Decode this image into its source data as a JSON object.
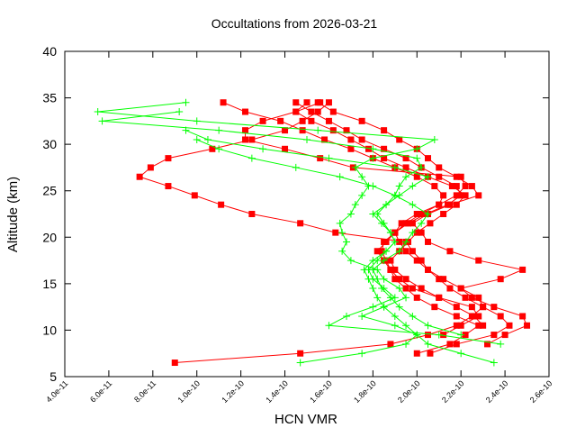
{
  "chart_data": {
    "type": "line",
    "title": "Occultations from 2026-03-21",
    "xlabel": "HCN VMR",
    "ylabel": "Altitude (km)",
    "xlim": [
      4e-11,
      2.6e-10
    ],
    "ylim": [
      5,
      40
    ],
    "xticks": [
      "4.0e-11",
      "6.0e-11",
      "8.0e-11",
      "1.0e-10",
      "1.2e-10",
      "1.4e-10",
      "1.6e-10",
      "1.8e-10",
      "2.0e-10",
      "2.2e-10",
      "2.4e-10",
      "2.6e-10"
    ],
    "xtick_values": [
      4e-11,
      6e-11,
      8e-11,
      1e-10,
      1.2e-10,
      1.4e-10,
      1.6e-10,
      1.8e-10,
      2e-10,
      2.2e-10,
      2.4e-10,
      2.6e-10
    ],
    "yticks": [
      "5",
      "10",
      "15",
      "20",
      "25",
      "30",
      "35",
      "40"
    ],
    "ytick_values": [
      5,
      10,
      15,
      20,
      25,
      30,
      35,
      40
    ],
    "grid": false,
    "legend": "none",
    "altitude_step_km": 1,
    "value_scale": 1e-10,
    "colors": {
      "red": "#ff0000",
      "green": "#00ff00"
    },
    "series": [
      {
        "color": "red",
        "marker": "square",
        "start_alt": 6.5,
        "values": [
          0.9,
          1.47,
          1.88,
          2.05,
          2.18,
          2.25,
          2.3,
          2.28,
          2.2,
          2.12,
          2.05,
          2.02,
          1.98,
          1.95,
          1.63,
          1.47,
          1.25,
          1.11,
          0.99,
          0.87,
          0.74,
          0.79,
          0.87,
          1.07,
          1.25,
          1.4,
          1.48,
          1.55,
          1.6
        ]
      },
      {
        "color": "red",
        "marker": "square",
        "start_alt": 7.5,
        "values": [
          2.06,
          2.18,
          2.35,
          2.42,
          2.38,
          2.3,
          2.22,
          2.15,
          2.1,
          2.05,
          2.0,
          1.95,
          1.92,
          1.9,
          1.93,
          2.0,
          2.1,
          2.18,
          2.22,
          2.2,
          1.71,
          1.56,
          1.4,
          1.22,
          1.22,
          1.3,
          1.45,
          1.5
        ]
      },
      {
        "color": "red",
        "marker": "square",
        "start_alt": 8.5,
        "values": [
          2.32,
          2.4,
          2.5,
          2.48,
          2.35,
          2.25,
          2.2,
          2.38,
          2.48,
          2.28,
          2.15,
          2.05,
          2.02,
          1.98,
          2.05,
          2.15,
          2.28,
          2.25,
          2.18,
          2.1,
          2.05,
          2.0,
          1.92,
          1.85,
          1.75,
          1.62,
          1.55
        ]
      },
      {
        "color": "red",
        "marker": "square",
        "start_alt": 9.5,
        "values": [
          2.12,
          2.2,
          2.28,
          2.25,
          2.1,
          1.98,
          1.92,
          1.88,
          1.85,
          1.82,
          1.86,
          1.9,
          1.95,
          2.02,
          2.1,
          2.12,
          2.08,
          2.0,
          1.9,
          1.8,
          1.7,
          1.58,
          1.48,
          1.38,
          1.22,
          1.12
        ]
      },
      {
        "color": "red",
        "marker": "square",
        "start_alt": 7.5,
        "values": [
          2.0,
          2.15,
          2.22,
          2.28,
          2.18,
          2.08,
          2.0,
          1.95,
          1.9,
          1.88,
          1.86,
          1.84,
          1.85,
          1.9,
          1.96,
          2.04,
          2.14,
          2.2,
          2.18,
          2.1,
          2.02,
          1.95,
          1.85,
          1.75,
          1.68,
          1.6,
          1.52,
          1.45
        ]
      },
      {
        "color": "red",
        "marker": "square",
        "start_alt": 10.5,
        "values": [
          2.3,
          2.26,
          2.18,
          2.1,
          2.02,
          1.95,
          1.9,
          1.88,
          1.92,
          1.96,
          2.0,
          2.06,
          2.12,
          2.18,
          2.22,
          2.16,
          2.05,
          1.95,
          1.85,
          1.78,
          1.7,
          1.62,
          1.52,
          1.45,
          1.56
        ]
      },
      {
        "color": "green",
        "marker": "plus",
        "start_alt": 6.5,
        "values": [
          1.47,
          1.75,
          1.95,
          2.0,
          1.9,
          1.75,
          1.85,
          1.95,
          1.92,
          1.85,
          1.82,
          1.7,
          1.66,
          1.68,
          1.66,
          1.65,
          1.7,
          1.72,
          1.75,
          1.78,
          1.75,
          1.72,
          1.8,
          2.0,
          2.08,
          1.55,
          1.0,
          0.55,
          0.95
        ]
      },
      {
        "color": "green",
        "marker": "plus",
        "start_alt": 6.5,
        "values": [
          2.35,
          2.2,
          2.05,
          2.0,
          1.95,
          1.9,
          1.85,
          1.82,
          1.8,
          1.78,
          1.76,
          1.8,
          1.86,
          1.9,
          1.88,
          1.85,
          1.82,
          1.86,
          1.9,
          1.92,
          1.95,
          2.02,
          2.0,
          1.8,
          1.5,
          1.1,
          0.57,
          0.92
        ]
      },
      {
        "color": "green",
        "marker": "plus",
        "start_alt": 8.5,
        "values": [
          2.38,
          2.1,
          1.6,
          1.68,
          1.8,
          1.9,
          1.85,
          1.8,
          1.78,
          1.82,
          1.86,
          1.9,
          1.88,
          1.84,
          1.8,
          1.86,
          1.92,
          1.98,
          2.05,
          1.9,
          1.6,
          1.3,
          1.05,
          0.95
        ]
      },
      {
        "color": "green",
        "marker": "plus",
        "start_alt": 9.5,
        "values": [
          2.2,
          2.05,
          1.98,
          1.92,
          1.88,
          1.84,
          1.82,
          1.8,
          1.85,
          1.92,
          1.95,
          1.98,
          2.02,
          2.05,
          1.98,
          1.9,
          1.8,
          1.65,
          1.45,
          1.25,
          1.1,
          1.0
        ]
      }
    ]
  }
}
